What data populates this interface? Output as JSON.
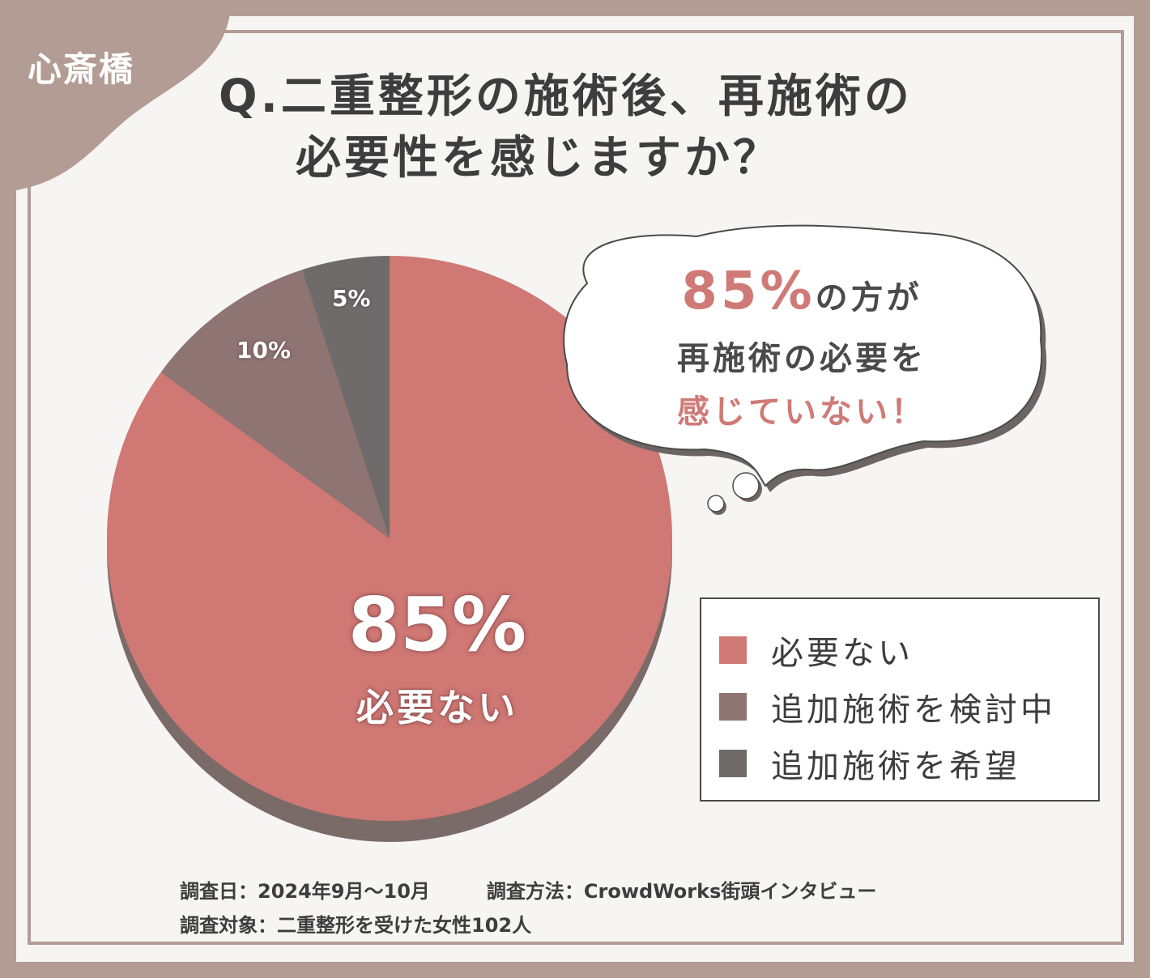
{
  "area_label": "心斎橋",
  "title": {
    "line1": "Q.二重整形の施術後、再施術の",
    "line2": "必要性を感じますか？"
  },
  "colors": {
    "frame": "#b39c94",
    "slice_1": "#cf7874",
    "slice_2": "#8e7472",
    "slice_3": "#706b6b",
    "accent_text": "#cf7a76"
  },
  "chart_data": {
    "type": "pie",
    "categories": [
      "必要ない",
      "追加施術を検討中",
      "追加施術を希望"
    ],
    "values": [
      85,
      10,
      5
    ],
    "labels": [
      "85%",
      "10%",
      "5%"
    ],
    "center_label": {
      "value": "85%",
      "text": "必要ない"
    },
    "legend_position": "right"
  },
  "bubble": {
    "pct": "85%",
    "line1_suffix": "の方が",
    "line2": "再施術の必要を",
    "line3": "感じていない！"
  },
  "legend": {
    "items": [
      {
        "label": "必要ない"
      },
      {
        "label": "追加施術を検討中"
      },
      {
        "label": "追加施術を希望"
      }
    ]
  },
  "notes": {
    "date": "調査日：2024年9月～10月",
    "method": "調査方法：CrowdWorks街頭インタビュー",
    "subject": "調査対象：二重整形を受けた女性102人"
  }
}
